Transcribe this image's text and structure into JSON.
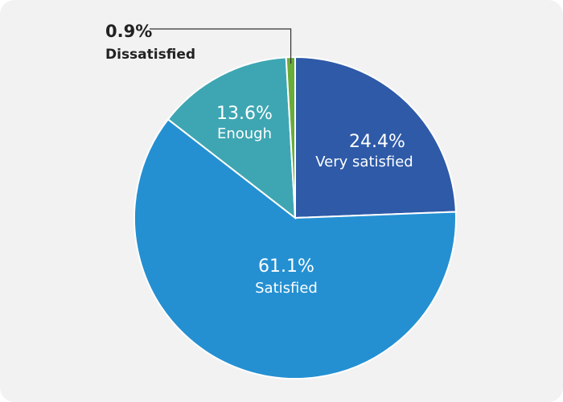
{
  "chart_data": {
    "type": "pie",
    "title": "",
    "slices": [
      {
        "label": "Very satisfied",
        "value": 24.4,
        "value_label": "24.4%",
        "color": "#2e5aa8"
      },
      {
        "label": "Satisfied",
        "value": 61.1,
        "value_label": "61.1%",
        "color": "#2490d2"
      },
      {
        "label": "Enough",
        "value": 13.6,
        "value_label": "13.6%",
        "color": "#3ea6b3"
      },
      {
        "label": "Dissatisfied",
        "value": 0.9,
        "value_label": "0.9%",
        "color": "#6aac3a"
      }
    ],
    "start_angle": "12 o'clock",
    "direction": "clockwise",
    "legend": "none"
  }
}
